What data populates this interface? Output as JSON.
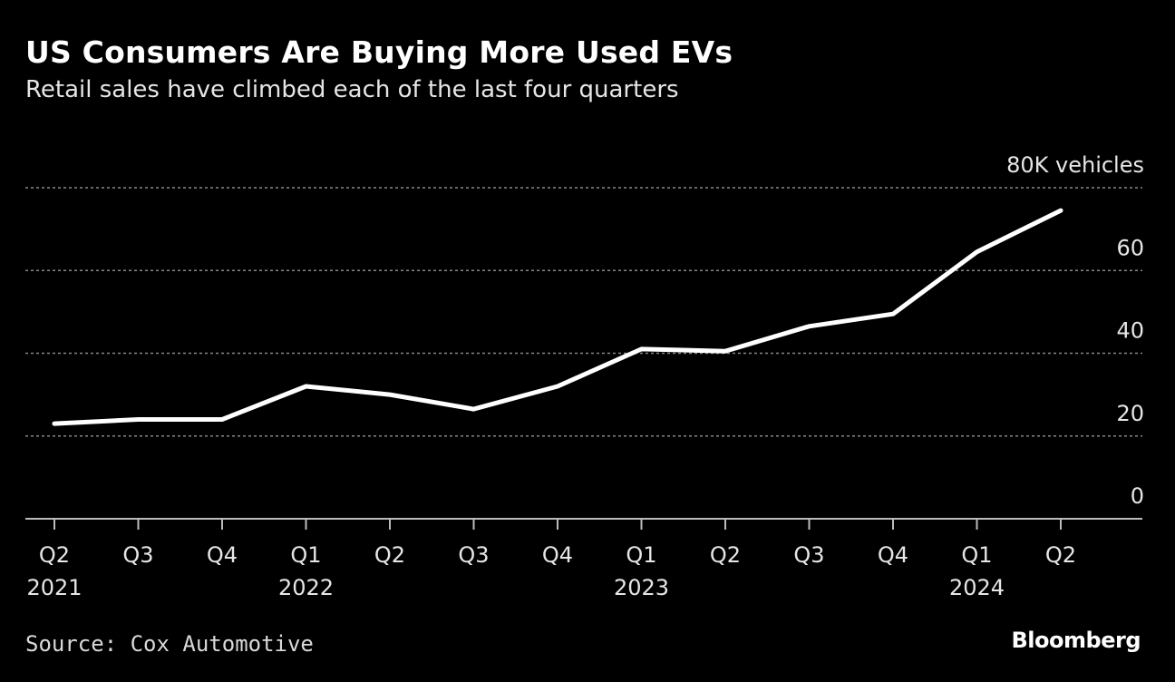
{
  "title": "US Consumers Are Buying More Used EVs",
  "subtitle": "Retail sales have climbed each of the last four quarters",
  "source": "Source: Cox Automotive",
  "brand": "Bloomberg",
  "colors": {
    "background": "#000000",
    "line": "#ffffff",
    "grid": "#888888",
    "text": "#e6e6e6"
  },
  "chart_data": {
    "type": "line",
    "categories": [
      "Q2 2021",
      "Q3 2021",
      "Q4 2021",
      "Q1 2022",
      "Q2 2022",
      "Q3 2022",
      "Q4 2022",
      "Q1 2023",
      "Q2 2023",
      "Q3 2023",
      "Q4 2023",
      "Q1 2024",
      "Q2 2024"
    ],
    "x_tick_labels": [
      {
        "quarter": "Q2",
        "year": "2021"
      },
      {
        "quarter": "Q3",
        "year": ""
      },
      {
        "quarter": "Q4",
        "year": ""
      },
      {
        "quarter": "Q1",
        "year": "2022"
      },
      {
        "quarter": "Q2",
        "year": ""
      },
      {
        "quarter": "Q3",
        "year": ""
      },
      {
        "quarter": "Q4",
        "year": ""
      },
      {
        "quarter": "Q1",
        "year": "2023"
      },
      {
        "quarter": "Q2",
        "year": ""
      },
      {
        "quarter": "Q3",
        "year": ""
      },
      {
        "quarter": "Q4",
        "year": ""
      },
      {
        "quarter": "Q1",
        "year": "2024"
      },
      {
        "quarter": "Q2",
        "year": ""
      }
    ],
    "series": [
      {
        "values": [
          23,
          24,
          24,
          32,
          30,
          26.5,
          32,
          41,
          40.5,
          46.5,
          49.5,
          64.5,
          74.5
        ]
      }
    ],
    "y_ticks": [
      {
        "value": 0,
        "label": "0"
      },
      {
        "value": 20,
        "label": "20"
      },
      {
        "value": 40,
        "label": "40"
      },
      {
        "value": 60,
        "label": "60"
      },
      {
        "value": 80,
        "label": "80K vehicles"
      }
    ],
    "ylim": [
      0,
      80
    ],
    "grid": true,
    "title": "US Consumers Are Buying More Used EVs",
    "subtitle": "Retail sales have climbed each of the last four quarters"
  }
}
